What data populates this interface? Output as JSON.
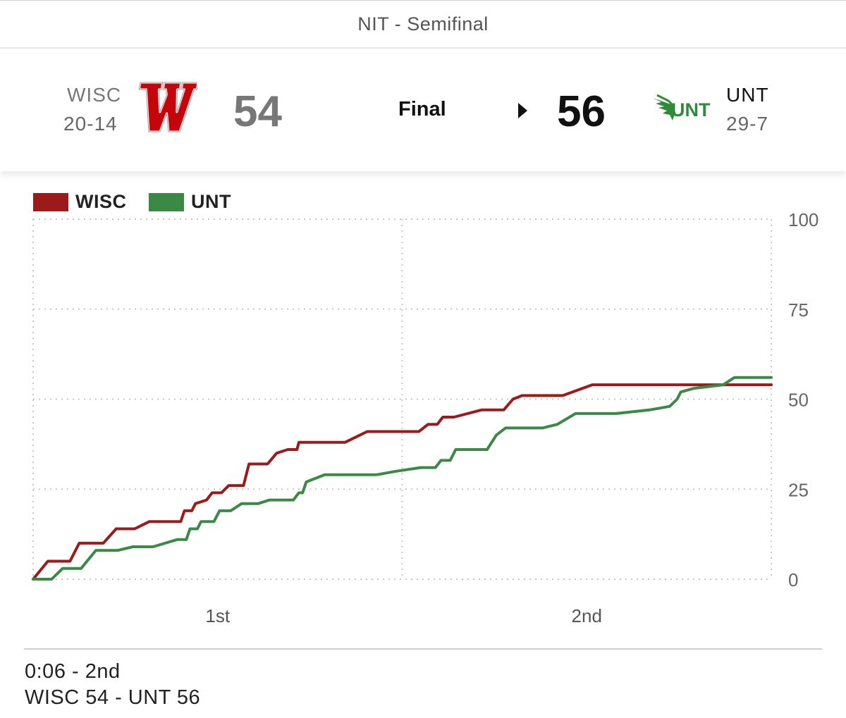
{
  "header": {
    "round": "NIT - Semifinal"
  },
  "game": {
    "status": "Final",
    "away": {
      "abbr": "WISC",
      "record": "20-14",
      "score": "54",
      "logo_text": "W",
      "color": "#c5050c"
    },
    "home": {
      "abbr": "UNT",
      "record": "29-7",
      "score": "56",
      "logo_text": "UNT",
      "color": "#2e8b3a"
    }
  },
  "legend": [
    {
      "label": "WISC",
      "color": "#9b1b1b"
    },
    {
      "label": "UNT",
      "color": "#3a8a45"
    }
  ],
  "chart_data": {
    "type": "line",
    "title": "",
    "xlabel": "",
    "ylabel": "",
    "x_tick_labels": [
      "1st",
      "2nd"
    ],
    "y_ticks": [
      0,
      25,
      50,
      75,
      100
    ],
    "ylim": [
      0,
      100
    ],
    "xlim": [
      0,
      40
    ],
    "x_unit": "game minutes elapsed",
    "grid": true,
    "legend_position": "top-left",
    "series": [
      {
        "name": "WISC",
        "color": "#9b1b1b",
        "points": [
          [
            0,
            0
          ],
          [
            0.8,
            5
          ],
          [
            2,
            5
          ],
          [
            2.5,
            10
          ],
          [
            3.8,
            10
          ],
          [
            4.5,
            14
          ],
          [
            5.5,
            14
          ],
          [
            6.3,
            16
          ],
          [
            8,
            16
          ],
          [
            8.2,
            19
          ],
          [
            8.6,
            19
          ],
          [
            8.8,
            21
          ],
          [
            9.4,
            22
          ],
          [
            9.7,
            24
          ],
          [
            10.2,
            24
          ],
          [
            10.6,
            26
          ],
          [
            11.4,
            26
          ],
          [
            11.7,
            32
          ],
          [
            12.7,
            32
          ],
          [
            13.2,
            35
          ],
          [
            13.8,
            36
          ],
          [
            14.3,
            36
          ],
          [
            14.4,
            38
          ],
          [
            16.9,
            38
          ],
          [
            18.1,
            41
          ],
          [
            20.9,
            41
          ],
          [
            21.4,
            43
          ],
          [
            21.9,
            43
          ],
          [
            22.2,
            45
          ],
          [
            22.8,
            45
          ],
          [
            24.3,
            47
          ],
          [
            25.5,
            47
          ],
          [
            26,
            50
          ],
          [
            26.5,
            51
          ],
          [
            28.7,
            51
          ],
          [
            30.3,
            54
          ],
          [
            40,
            54
          ]
        ]
      },
      {
        "name": "UNT",
        "color": "#3a8a45",
        "points": [
          [
            0,
            0
          ],
          [
            1,
            0
          ],
          [
            1.6,
            3
          ],
          [
            2.6,
            3
          ],
          [
            3.4,
            8
          ],
          [
            4.6,
            8
          ],
          [
            5.4,
            9
          ],
          [
            6.5,
            9
          ],
          [
            7.8,
            11
          ],
          [
            8.3,
            11
          ],
          [
            8.5,
            14
          ],
          [
            8.9,
            14
          ],
          [
            9.1,
            16
          ],
          [
            9.8,
            16
          ],
          [
            10.1,
            19
          ],
          [
            10.7,
            19
          ],
          [
            11.3,
            21
          ],
          [
            12.2,
            21
          ],
          [
            12.8,
            22
          ],
          [
            14.1,
            22
          ],
          [
            14.4,
            24
          ],
          [
            14.6,
            24
          ],
          [
            14.8,
            27
          ],
          [
            15.8,
            29
          ],
          [
            18.6,
            29
          ],
          [
            19.7,
            30
          ],
          [
            21,
            31
          ],
          [
            21.8,
            31
          ],
          [
            22.1,
            33
          ],
          [
            22.6,
            33
          ],
          [
            22.9,
            36
          ],
          [
            24.6,
            36
          ],
          [
            25.1,
            40
          ],
          [
            25.6,
            42
          ],
          [
            27.6,
            42
          ],
          [
            28.4,
            43
          ],
          [
            29.4,
            46
          ],
          [
            31.6,
            46
          ],
          [
            33.4,
            47
          ],
          [
            34.5,
            48
          ],
          [
            34.9,
            50
          ],
          [
            35.1,
            52
          ],
          [
            35.8,
            53
          ],
          [
            37.4,
            54
          ],
          [
            38,
            56
          ],
          [
            40,
            56
          ]
        ]
      }
    ]
  },
  "footer": {
    "time_line": "0:06 - 2nd",
    "score_line": "WISC 54 - UNT 56"
  }
}
